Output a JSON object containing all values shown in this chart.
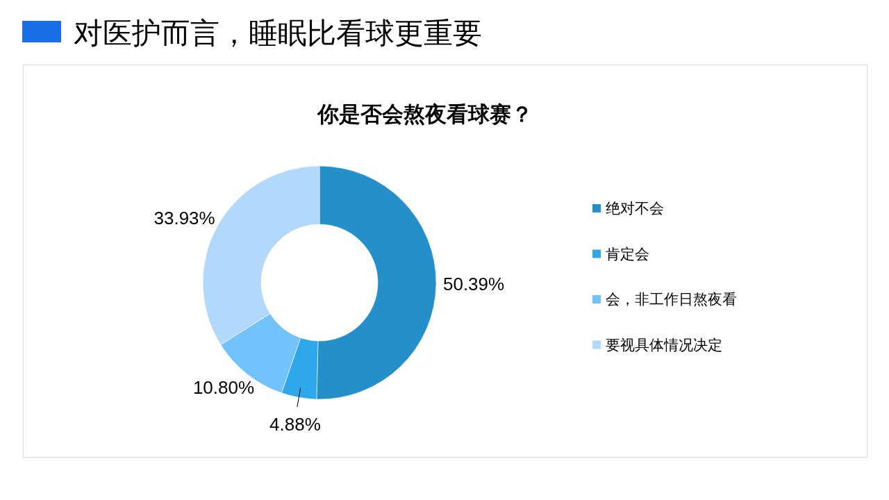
{
  "chart_data": {
    "type": "donut",
    "title": "对医护而言，睡眠比看球更重要",
    "subtitle": "你是否会熬夜看球赛？",
    "categories": [
      "绝对不会",
      "肯定会",
      "会，非工作日熬夜看",
      "要视具体情况决定"
    ],
    "values": [
      50.39,
      4.88,
      10.8,
      33.93
    ],
    "colors": [
      "#248fc8",
      "#2fa8eb",
      "#72c2fb",
      "#b2d8fb"
    ],
    "value_labels": [
      "50.39%",
      "4.88%",
      "10.80%",
      "33.93%"
    ],
    "legend": "right"
  }
}
